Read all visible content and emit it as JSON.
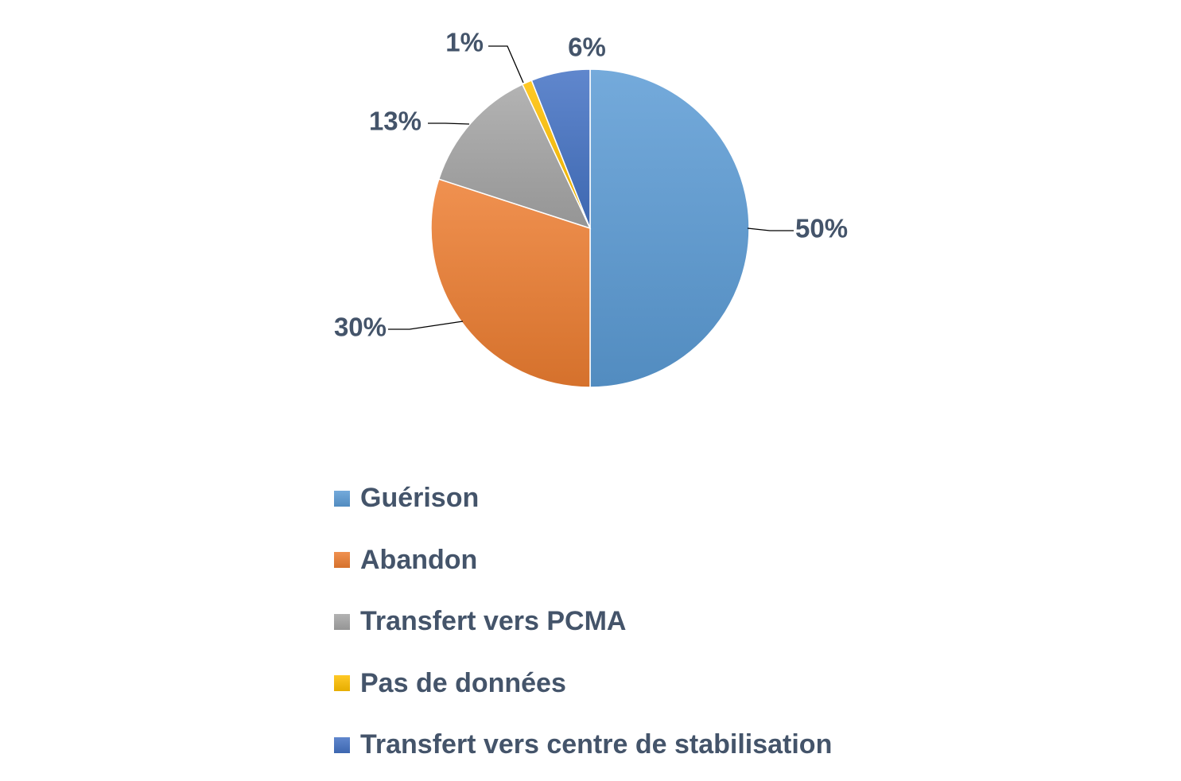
{
  "chart_data": {
    "type": "pie",
    "title": "",
    "slices": [
      {
        "label": "Guérison",
        "value": 50,
        "data_label": "50%",
        "color": "#5b9bd5"
      },
      {
        "label": "Abandon",
        "value": 30,
        "data_label": "30%",
        "color": "#ed7d31"
      },
      {
        "label": "Transfert vers PCMA",
        "value": 13,
        "data_label": "13%",
        "color": "#a5a5a5"
      },
      {
        "label": "Pas de données",
        "value": 1,
        "data_label": "1%",
        "color": "#ffc000"
      },
      {
        "label": "Transfert vers centre de stabilisation",
        "value": 6,
        "data_label": "6%",
        "color": "#4472c4"
      }
    ],
    "legend_position": "bottom",
    "start_angle": "12 o'clock",
    "direction": "clockwise"
  }
}
